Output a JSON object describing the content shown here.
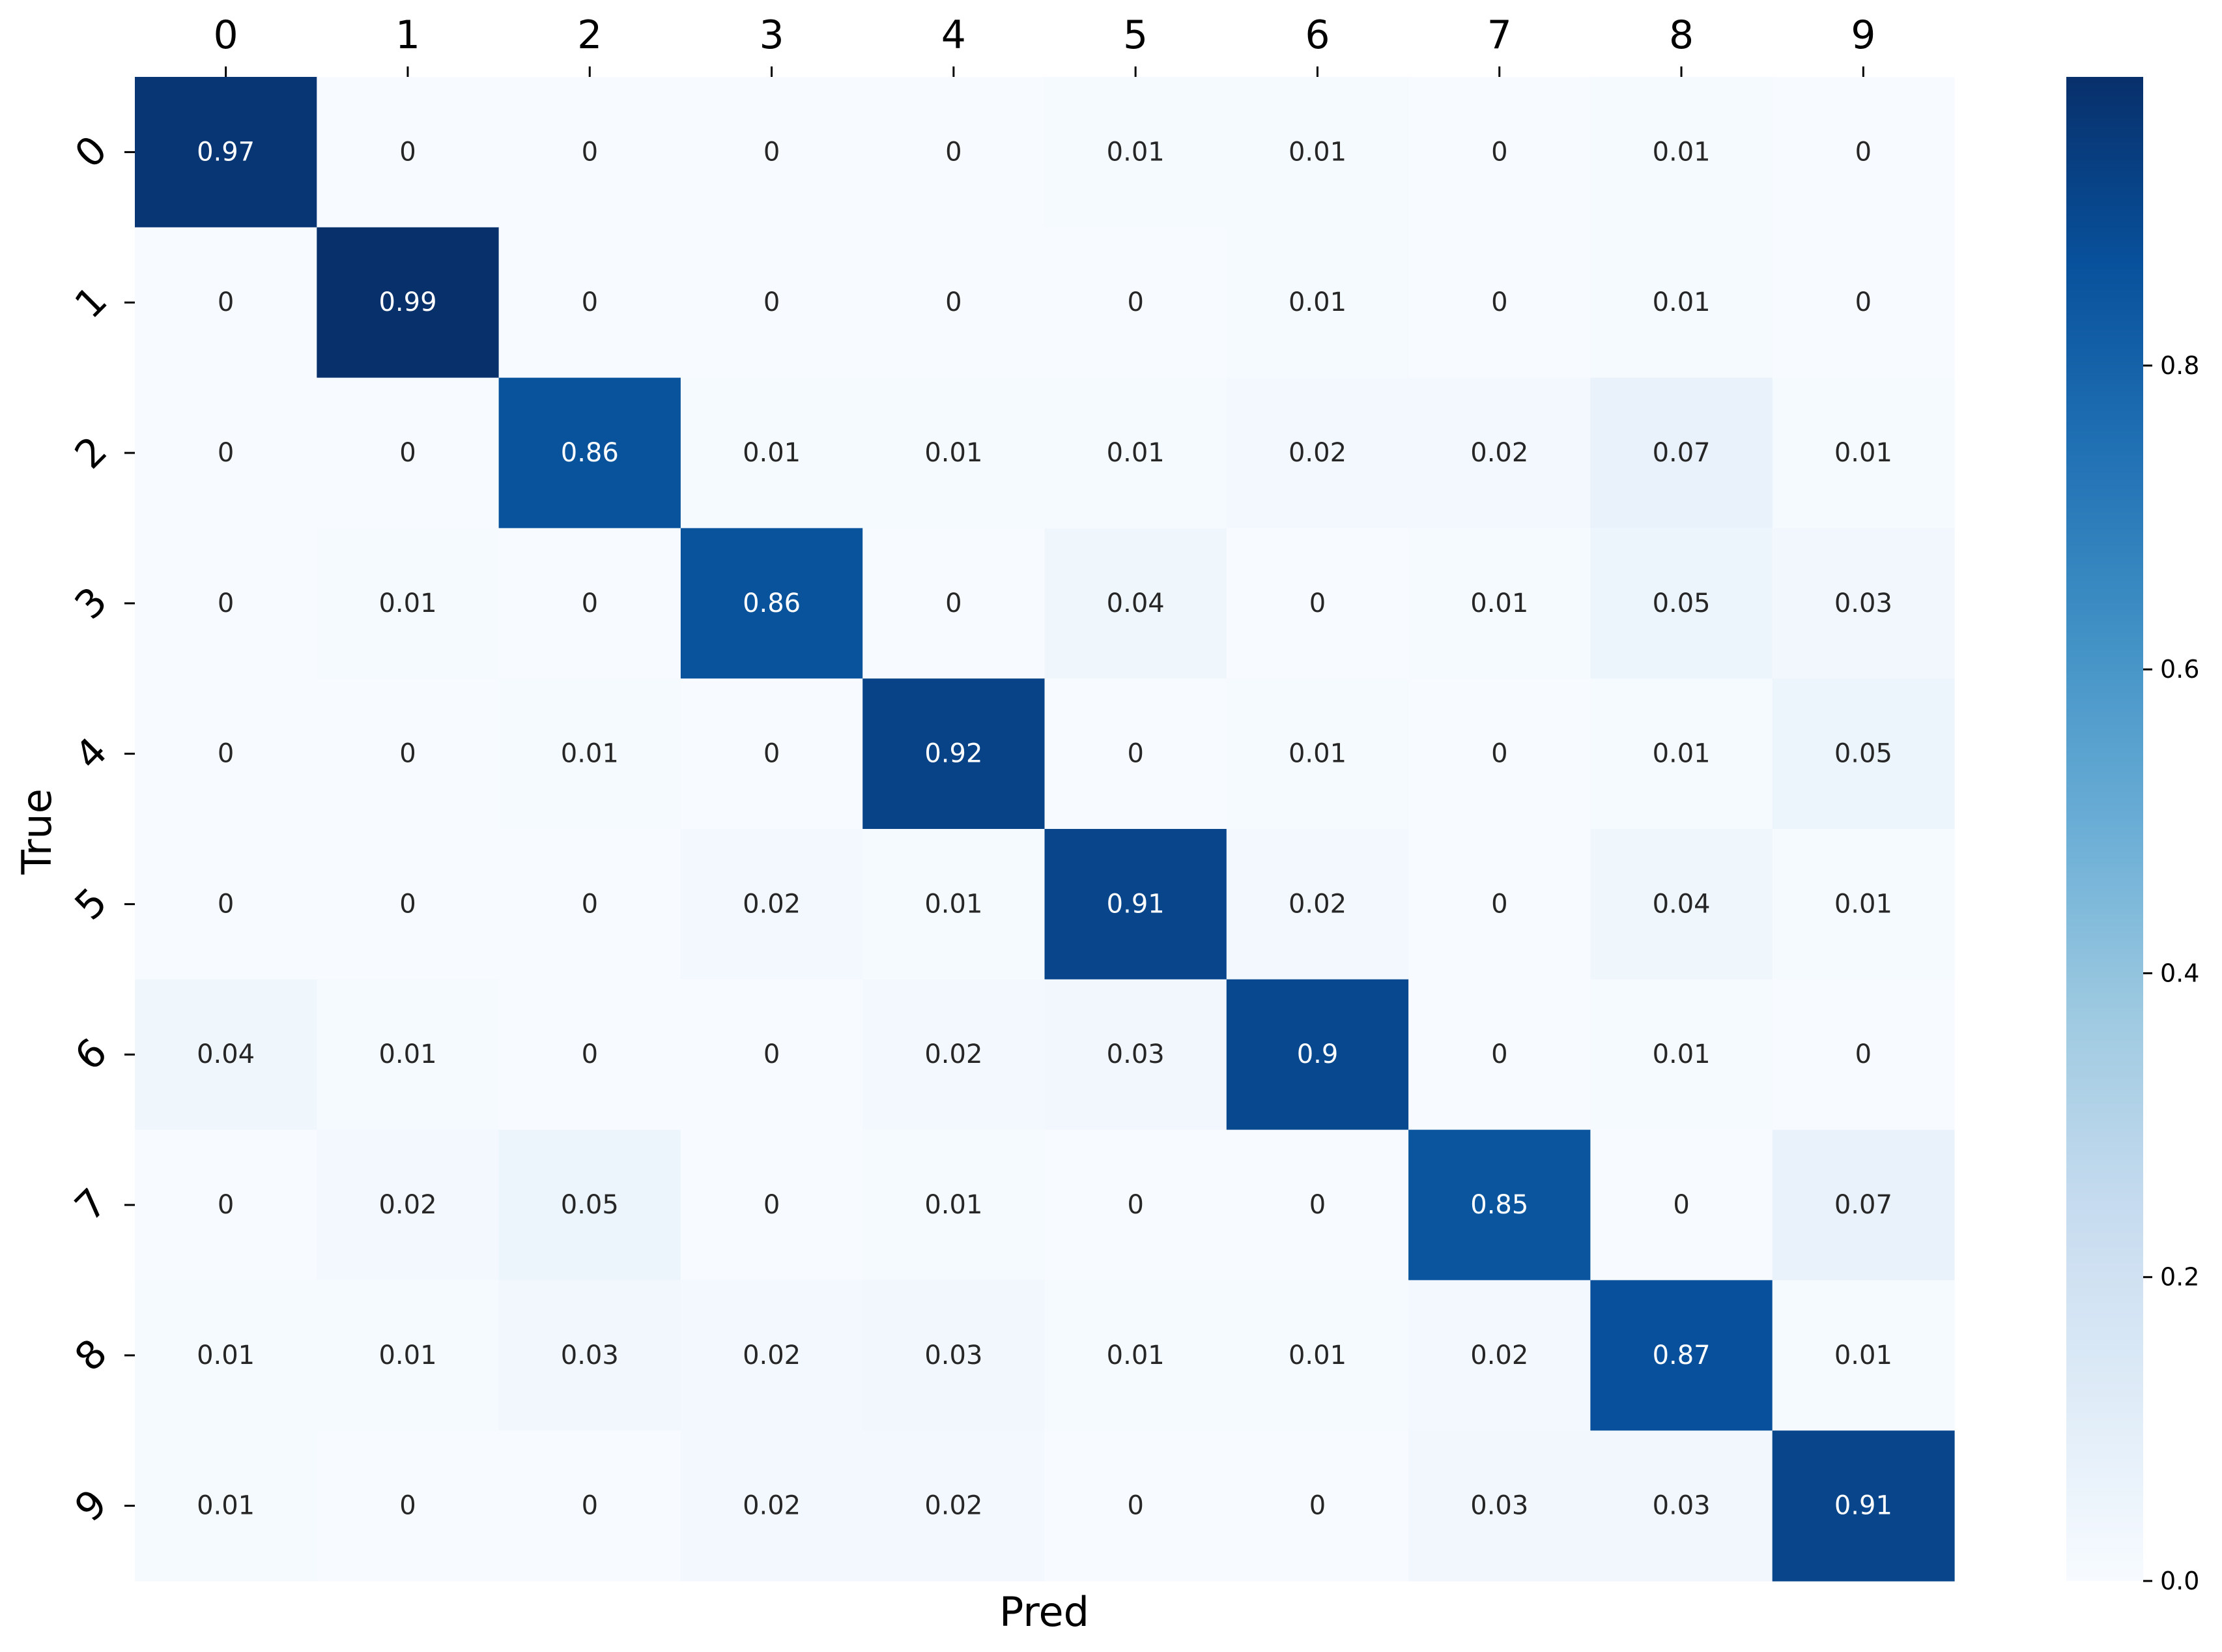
{
  "chart_data": {
    "type": "heatmap",
    "xlabel": "Pred",
    "ylabel": "True",
    "x_categories": [
      "0",
      "1",
      "2",
      "3",
      "4",
      "5",
      "6",
      "7",
      "8",
      "9"
    ],
    "y_categories": [
      "0",
      "1",
      "2",
      "3",
      "4",
      "5",
      "6",
      "7",
      "8",
      "9"
    ],
    "matrix": [
      [
        0.97,
        0,
        0,
        0,
        0,
        0.01,
        0.01,
        0,
        0.01,
        0
      ],
      [
        0,
        0.99,
        0,
        0,
        0,
        0,
        0.01,
        0,
        0.01,
        0
      ],
      [
        0,
        0,
        0.86,
        0.01,
        0.01,
        0.01,
        0.02,
        0.02,
        0.07,
        0.01
      ],
      [
        0,
        0.01,
        0,
        0.86,
        0,
        0.04,
        0,
        0.01,
        0.05,
        0.03
      ],
      [
        0,
        0,
        0.01,
        0,
        0.92,
        0,
        0.01,
        0,
        0.01,
        0.05
      ],
      [
        0,
        0,
        0,
        0.02,
        0.01,
        0.91,
        0.02,
        0,
        0.04,
        0.01
      ],
      [
        0.04,
        0.01,
        0,
        0,
        0.02,
        0.03,
        0.9,
        0,
        0.01,
        0
      ],
      [
        0,
        0.02,
        0.05,
        0,
        0.01,
        0,
        0,
        0.85,
        0,
        0.07
      ],
      [
        0.01,
        0.01,
        0.03,
        0.02,
        0.03,
        0.01,
        0.01,
        0.02,
        0.87,
        0.01
      ],
      [
        0.01,
        0,
        0,
        0.02,
        0.02,
        0,
        0,
        0.03,
        0.03,
        0.91
      ]
    ],
    "colormap": "Blues",
    "colormap_stops": [
      "#f7fbff",
      "#deebf7",
      "#c6dbef",
      "#9ecae1",
      "#6baed6",
      "#4292c6",
      "#2171b5",
      "#08519c",
      "#08306b"
    ],
    "colorbar": {
      "range": [
        0,
        0.99
      ],
      "ticks": [
        "0.0",
        "0.2",
        "0.4",
        "0.6",
        "0.8"
      ]
    },
    "x_ticks_position": "top",
    "grid": false
  }
}
